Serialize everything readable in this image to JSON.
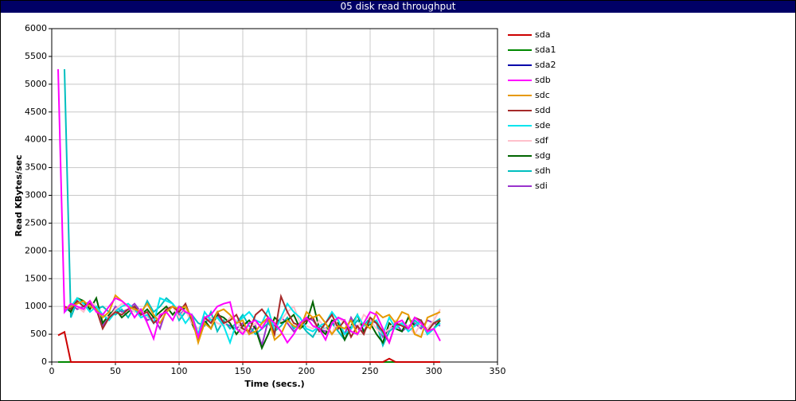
{
  "chart_data": {
    "type": "line",
    "title": "05 disk read throughput",
    "x_label": "Time (secs.)",
    "y_label": "Read KBytes/sec",
    "xlim": [
      0,
      350
    ],
    "xticks": [
      0,
      50,
      100,
      150,
      200,
      250,
      300,
      350
    ],
    "ylim": [
      0,
      6000
    ],
    "yticks": [
      0,
      500,
      1000,
      1500,
      2000,
      2500,
      3000,
      3500,
      4000,
      4500,
      5000,
      5500,
      6000
    ],
    "grid": true,
    "x": [
      5,
      10,
      15,
      20,
      25,
      30,
      35,
      40,
      45,
      50,
      55,
      60,
      65,
      70,
      75,
      80,
      85,
      90,
      95,
      100,
      105,
      110,
      115,
      120,
      125,
      130,
      135,
      140,
      145,
      150,
      155,
      160,
      165,
      170,
      175,
      180,
      185,
      190,
      195,
      200,
      205,
      210,
      215,
      220,
      225,
      230,
      235,
      240,
      245,
      250,
      255,
      260,
      265,
      270,
      275,
      280,
      285,
      290,
      295,
      300,
      305
    ],
    "series": [
      {
        "name": "sda",
        "color": "#cc0000",
        "values": [
          480,
          540,
          0,
          0,
          0,
          0,
          0,
          0,
          0,
          0,
          0,
          0,
          0,
          0,
          0,
          0,
          0,
          0,
          0,
          0,
          0,
          0,
          0,
          0,
          0,
          0,
          0,
          0,
          0,
          0,
          0,
          0,
          0,
          0,
          0,
          0,
          0,
          0,
          0,
          0,
          0,
          0,
          0,
          0,
          0,
          0,
          0,
          0,
          0,
          0,
          0,
          0,
          60,
          0,
          0,
          0,
          0,
          0,
          0,
          0,
          0
        ]
      },
      {
        "name": "sda1",
        "color": "#008800",
        "values": [
          0,
          0,
          0,
          0,
          0,
          0,
          0,
          0,
          0,
          0,
          0,
          0,
          0,
          0,
          0,
          0,
          0,
          0,
          0,
          0,
          0,
          0,
          0,
          0,
          0,
          0,
          0,
          0,
          0,
          0,
          0,
          0,
          0,
          0,
          0,
          0,
          0,
          0,
          0,
          0,
          0,
          0,
          0,
          0,
          0,
          0,
          0,
          0,
          0,
          0,
          0,
          0,
          0,
          0,
          0,
          0,
          0,
          0,
          0,
          0,
          0
        ]
      },
      {
        "name": "sda2",
        "color": "#0000aa",
        "values": [
          0,
          0,
          0,
          0,
          0,
          0,
          0,
          0,
          0,
          0,
          0,
          0,
          0,
          0,
          0,
          0,
          0,
          0,
          0,
          0,
          0,
          0,
          0,
          0,
          0,
          0,
          0,
          0,
          0,
          0,
          0,
          0,
          0,
          0,
          0,
          0,
          0,
          0,
          0,
          0,
          0,
          0,
          0,
          0,
          0,
          0,
          0,
          0,
          0,
          0,
          0,
          0,
          0,
          0,
          0,
          0,
          0,
          0,
          0,
          0,
          0
        ]
      },
      {
        "name": "sdb",
        "color": "#ff00ff",
        "values": [
          5270,
          900,
          1050,
          1000,
          950,
          1100,
          900,
          850,
          1000,
          1150,
          1100,
          1000,
          800,
          950,
          700,
          420,
          850,
          900,
          750,
          1000,
          900,
          850,
          450,
          800,
          850,
          1000,
          1050,
          1080,
          600,
          500,
          700,
          750,
          600,
          800,
          700,
          550,
          350,
          500,
          700,
          800,
          650,
          600,
          400,
          700,
          800,
          750,
          550,
          500,
          700,
          900,
          850,
          600,
          350,
          700,
          750,
          600,
          800,
          700,
          550,
          600,
          380
        ]
      },
      {
        "name": "sdc",
        "color": "#e69900",
        "values": [
          null,
          950,
          1000,
          1050,
          1100,
          1000,
          950,
          800,
          900,
          1200,
          1100,
          1000,
          950,
          900,
          1050,
          850,
          700,
          900,
          1000,
          950,
          1000,
          800,
          350,
          700,
          600,
          900,
          950,
          850,
          700,
          750,
          500,
          550,
          700,
          800,
          400,
          500,
          750,
          650,
          600,
          900,
          800,
          850,
          700,
          500,
          650,
          600,
          750,
          500,
          700,
          600,
          900,
          800,
          850,
          700,
          900,
          850,
          500,
          450,
          800,
          850,
          900
        ]
      },
      {
        "name": "sdd",
        "color": "#a52a2a",
        "values": [
          null,
          1000,
          950,
          1100,
          1000,
          1050,
          950,
          600,
          800,
          900,
          850,
          950,
          1000,
          850,
          900,
          700,
          800,
          950,
          1000,
          900,
          1050,
          750,
          400,
          800,
          700,
          900,
          700,
          750,
          850,
          600,
          550,
          850,
          950,
          800,
          500,
          1180,
          900,
          700,
          650,
          750,
          800,
          550,
          700,
          850,
          600,
          750,
          450,
          650,
          500,
          800,
          700,
          550,
          350,
          700,
          650,
          600,
          800,
          750,
          550,
          700,
          750
        ]
      },
      {
        "name": "sde",
        "color": "#00e5ee",
        "values": [
          null,
          900,
          1000,
          1150,
          1050,
          900,
          1000,
          850,
          750,
          900,
          1000,
          1050,
          950,
          800,
          850,
          700,
          1150,
          1100,
          1050,
          900,
          700,
          850,
          500,
          900,
          750,
          800,
          650,
          350,
          700,
          800,
          900,
          750,
          700,
          950,
          550,
          800,
          1050,
          900,
          800,
          600,
          550,
          650,
          700,
          900,
          750,
          500,
          600,
          850,
          650,
          700,
          750,
          500,
          800,
          600,
          700,
          550,
          650,
          750,
          500,
          600,
          700
        ]
      },
      {
        "name": "sdf",
        "color": "#ffc0cb",
        "values": [
          null,
          950,
          1050,
          1000,
          900,
          1100,
          1000,
          850,
          800,
          950,
          1050,
          1000,
          900,
          950,
          800,
          750,
          850,
          900,
          1000,
          800,
          950,
          700,
          600,
          750,
          800,
          700,
          650,
          800,
          750,
          500,
          600,
          700,
          650,
          800,
          600,
          750,
          900,
          1000,
          700,
          650,
          600,
          750,
          600,
          500,
          800,
          700,
          650,
          600,
          850,
          750,
          600,
          500,
          600,
          750,
          700,
          650,
          500,
          700,
          600,
          750,
          950
        ]
      },
      {
        "name": "sdg",
        "color": "#006400",
        "values": [
          null,
          1000,
          900,
          1150,
          1100,
          950,
          1150,
          700,
          850,
          950,
          800,
          900,
          1000,
          850,
          950,
          800,
          900,
          1000,
          850,
          1000,
          950,
          700,
          450,
          750,
          600,
          850,
          800,
          700,
          500,
          650,
          750,
          600,
          250,
          500,
          800,
          700,
          750,
          850,
          600,
          700,
          1080,
          600,
          500,
          750,
          700,
          400,
          650,
          850,
          550,
          700,
          500,
          350,
          700,
          600,
          550,
          800,
          650,
          750,
          500,
          600,
          750
        ]
      },
      {
        "name": "sdh",
        "color": "#00bfbf",
        "values": [
          null,
          5270,
          800,
          1100,
          1000,
          1050,
          950,
          1000,
          900,
          850,
          950,
          800,
          1000,
          850,
          1100,
          900,
          1000,
          1150,
          1050,
          750,
          900,
          850,
          700,
          650,
          900,
          550,
          750,
          600,
          700,
          850,
          650,
          500,
          600,
          700,
          550,
          650,
          800,
          600,
          700,
          550,
          450,
          650,
          600,
          700,
          550,
          400,
          600,
          750,
          650,
          800,
          700,
          300,
          550,
          650,
          700,
          600,
          750,
          650,
          600,
          700,
          780
        ]
      },
      {
        "name": "sdi",
        "color": "#9933cc",
        "values": [
          null,
          900,
          1050,
          950,
          1000,
          1100,
          950,
          650,
          800,
          1000,
          900,
          950,
          1050,
          900,
          750,
          800,
          600,
          950,
          1000,
          850,
          950,
          700,
          450,
          800,
          750,
          850,
          700,
          650,
          600,
          700,
          500,
          650,
          300,
          750,
          650,
          800,
          700,
          550,
          650,
          800,
          750,
          600,
          550,
          700,
          650,
          500,
          800,
          600,
          550,
          750,
          700,
          450,
          600,
          700,
          550,
          650,
          700,
          600,
          750,
          700,
          650
        ]
      }
    ]
  }
}
